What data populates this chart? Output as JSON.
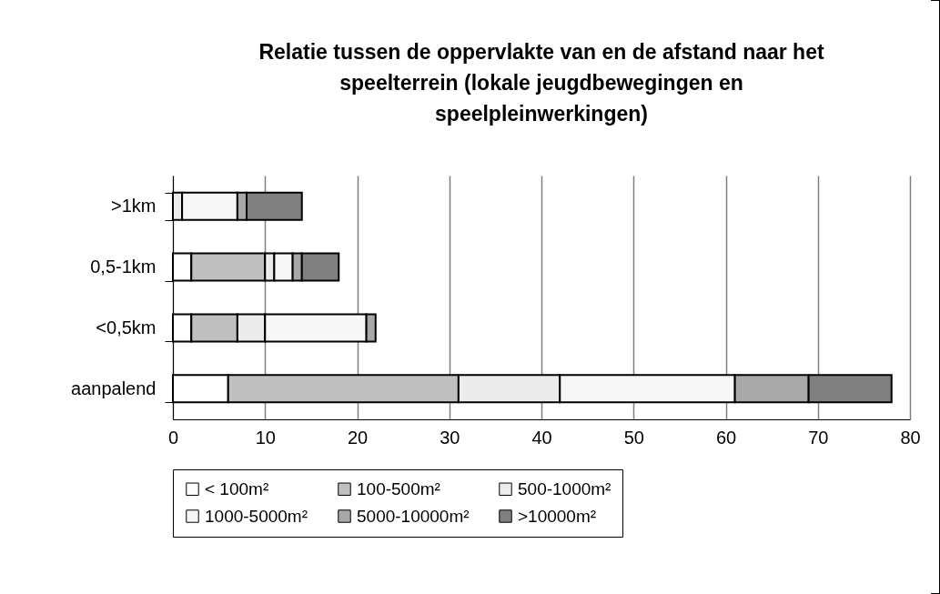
{
  "chart_data": {
    "type": "bar",
    "orientation": "horizontal",
    "stacked": true,
    "title": "Relatie tussen de oppervlakte van en de afstand naar het speelterrein (lokale jeugdbewegingen en speelpleinwerkingen)",
    "categories": [
      ">1km",
      "0,5-1km",
      "<0,5km",
      "aanpalend"
    ],
    "series": [
      {
        "name": "< 100m²",
        "color": "#ffffff",
        "values": [
          0,
          2,
          2,
          6
        ]
      },
      {
        "name": "100-500m²",
        "color": "#c0c0c0",
        "values": [
          0,
          8,
          5,
          25
        ]
      },
      {
        "name": "500-1000m²",
        "color": "#ececec",
        "values": [
          1,
          1,
          3,
          11
        ]
      },
      {
        "name": "1000-5000m²",
        "color": "#f7f7f7",
        "values": [
          6,
          2,
          11,
          19
        ]
      },
      {
        "name": "5000-10000m²",
        "color": "#a8a8a8",
        "values": [
          1,
          1,
          1,
          8
        ]
      },
      {
        "name": ">10000m²",
        "color": "#808080",
        "values": [
          6,
          4,
          0,
          9
        ]
      }
    ],
    "xlim": [
      0,
      80
    ],
    "xticks": [
      0,
      10,
      20,
      30,
      40,
      50,
      60,
      70,
      80
    ],
    "grid": "x",
    "legend": "bottom"
  }
}
